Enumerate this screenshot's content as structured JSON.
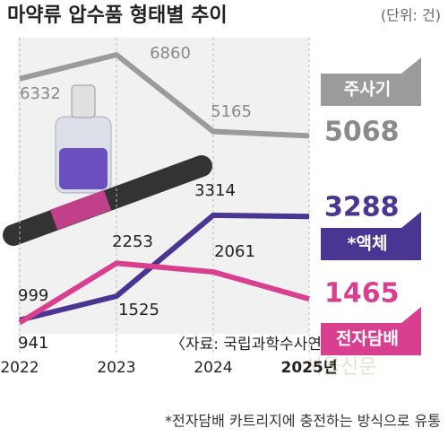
{
  "title": "마약류 압수품 형태별 추이",
  "unit": "(단위: 건)",
  "chart_data": {
    "type": "line",
    "categories": [
      "2022",
      "2023",
      "2024",
      "2025년"
    ],
    "series": [
      {
        "name": "주사기",
        "color": "#9b9b9b",
        "values": [
          6332,
          6860,
          5165,
          5068
        ]
      },
      {
        "name": "*액체",
        "color": "#4b3592",
        "values": [
          999,
          1525,
          3314,
          3288
        ]
      },
      {
        "name": "전자담배",
        "color": "#d8408f",
        "values": [
          941,
          2253,
          2061,
          1465
        ]
      }
    ],
    "ylim": [
      0,
      7000
    ]
  },
  "source": "〈자료: 국립과학수사연구원〉",
  "footnote": "*전자담배 카트리지에 충전하는 방식으로 유통",
  "watermark": "서울신문"
}
